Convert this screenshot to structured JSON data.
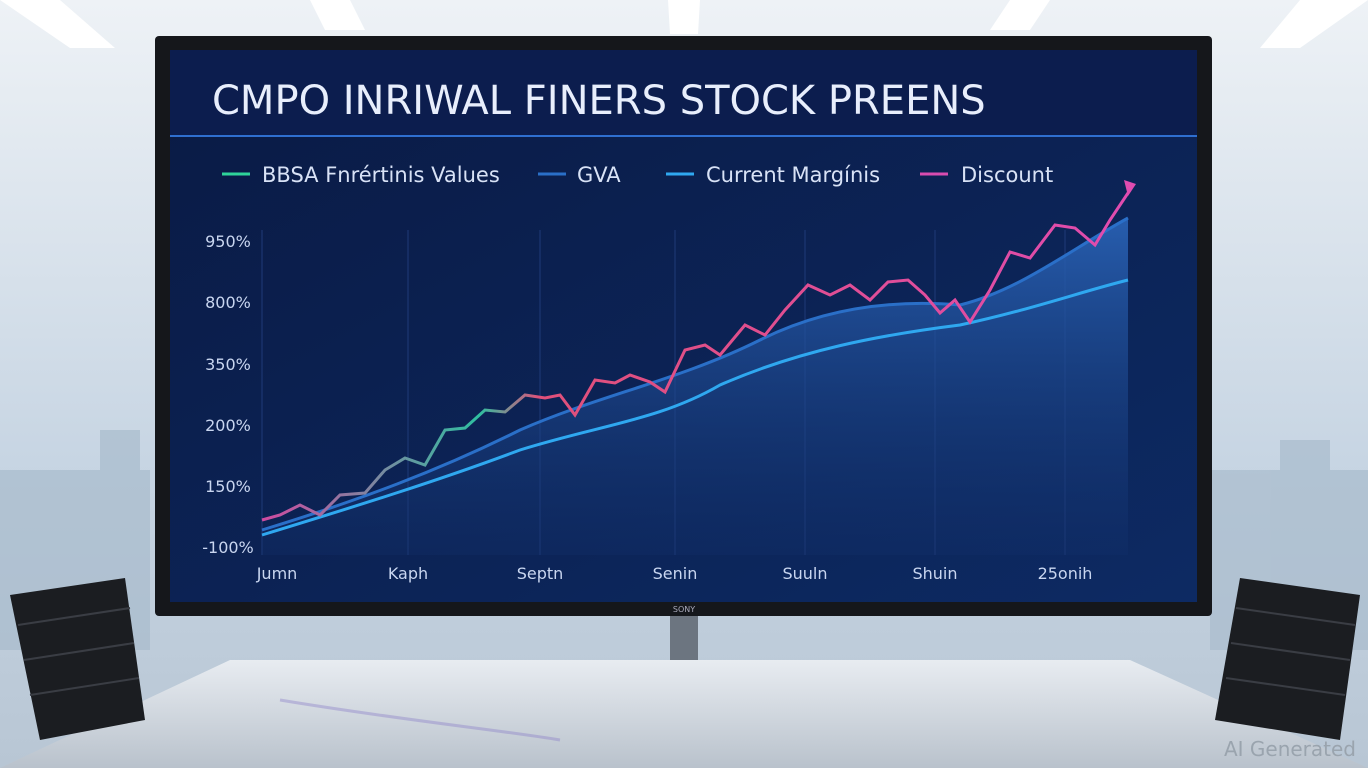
{
  "screen": {
    "title": "CMPO INRIWAL FINERS STOCK PREENS",
    "legend": [
      "BBSA Fnrértinis Values",
      "GVA",
      "Current Margínis",
      "Discount"
    ],
    "y_labels": [
      "950%",
      "800%",
      "350%",
      "200%",
      "150%",
      "-100%"
    ],
    "x_labels": [
      "Jumn",
      "Kaph",
      "Septn",
      "Senin",
      "Suuln",
      "Shuin",
      "25onih"
    ],
    "brand": "SONY"
  },
  "watermark": "AI Generated"
}
